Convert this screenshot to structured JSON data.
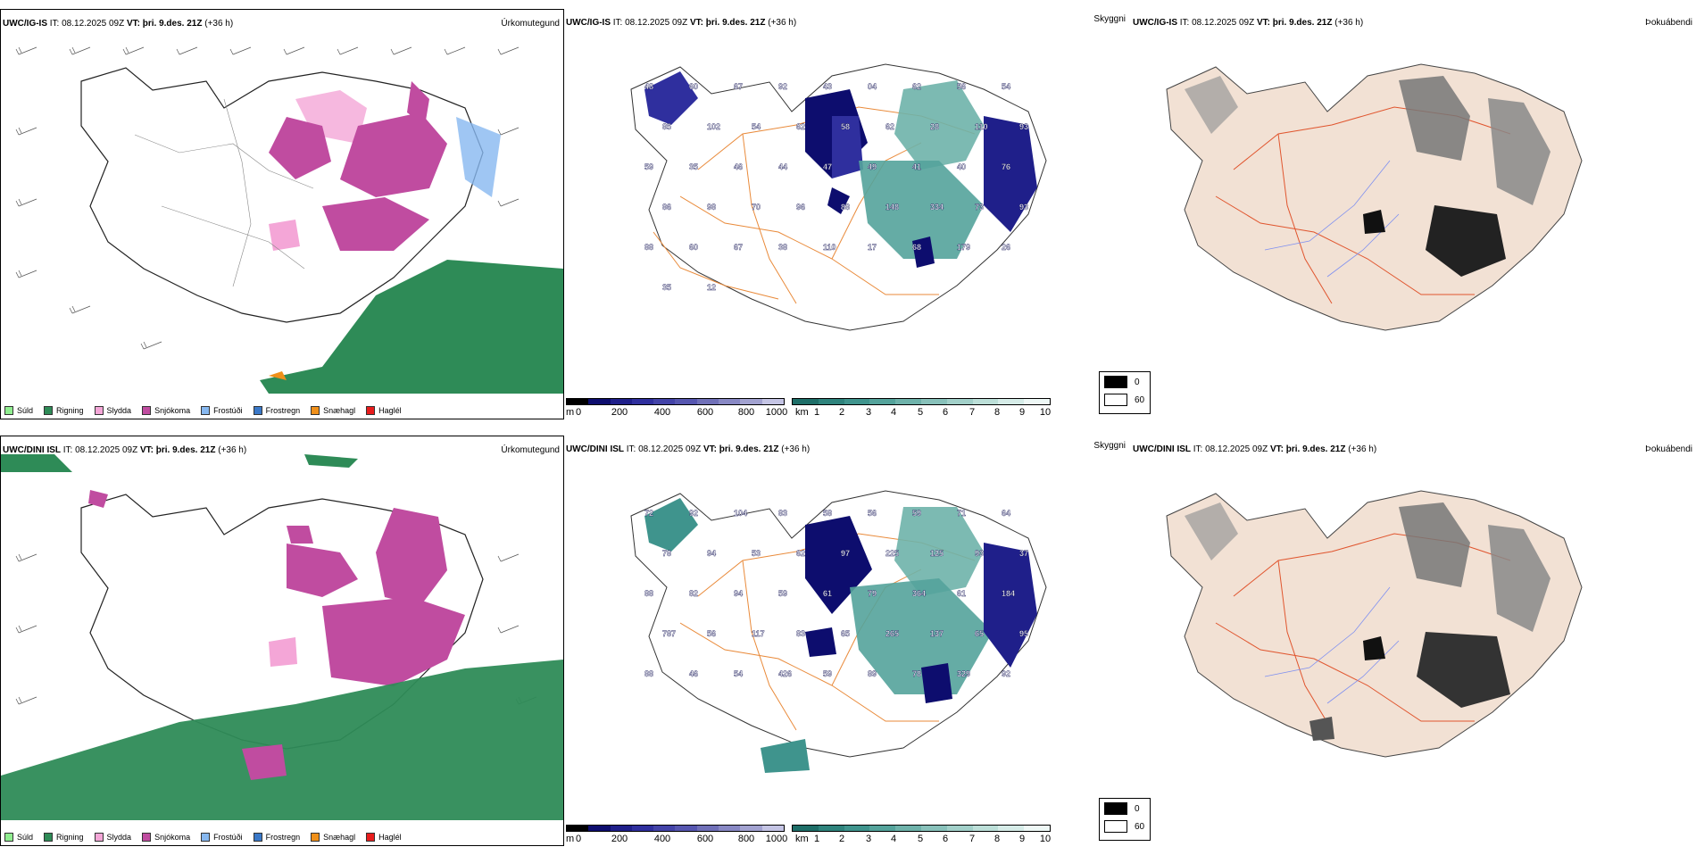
{
  "precip_legend": [
    {
      "label": "Súld",
      "color": "#90ee90"
    },
    {
      "label": "Rigning",
      "color": "#2e8b57"
    },
    {
      "label": "Slydda",
      "color": "#f4a6d7"
    },
    {
      "label": "Snjókoma",
      "color": "#c04ca0"
    },
    {
      "label": "Frostúði",
      "color": "#87b8f0"
    },
    {
      "label": "Frostregn",
      "color": "#3a78c8"
    },
    {
      "label": "Snæhagl",
      "color": "#f0901a"
    },
    {
      "label": "Haglél",
      "color": "#e81c1c"
    }
  ],
  "rows": [
    {
      "model": "UWC/IG-IS",
      "it_label": "IT:",
      "it_value": "08.12.2025 09Z",
      "vt_label": "VT:",
      "vt_value": "þri. 9.des. 21Z",
      "lead": "(+36 h)",
      "title_precip": "Úrkomutegund",
      "title_vis": "Skyggni",
      "title_fog": "Þokuábendi",
      "cloud_labels": [
        "48",
        "60",
        "67",
        "92",
        "43",
        "04",
        "62",
        "56",
        "54",
        "85",
        "102",
        "54",
        "62",
        "58",
        "62",
        "28",
        "110",
        "93",
        "59",
        "35",
        "46",
        "44",
        "47",
        "49",
        "41",
        "40",
        "76",
        "86",
        "98",
        "70",
        "96",
        "88",
        "148",
        "334",
        "73",
        "93",
        "88",
        "60",
        "67",
        "38",
        "110",
        "17",
        "68",
        "179",
        "26",
        "35",
        "12"
      ]
    },
    {
      "model": "UWC/DINI ISL",
      "it_label": "IT:",
      "it_value": "08.12.2025 09Z",
      "vt_label": "VT:",
      "vt_value": "þri. 9.des. 21Z",
      "lead": "(+36 h)",
      "title_precip": "Úrkomutegund",
      "title_vis": "Skyggni",
      "title_fog": "Þokuábendi",
      "cloud_labels": [
        "72",
        "92",
        "104",
        "83",
        "58",
        "56",
        "59",
        "71",
        "64",
        "78",
        "94",
        "53",
        "62",
        "97",
        "225",
        "125",
        "93",
        "37",
        "88",
        "82",
        "94",
        "59",
        "61",
        "79",
        "364",
        "61",
        "184",
        "787",
        "56",
        "117",
        "83",
        "65",
        "265",
        "137",
        "65",
        "95",
        "88",
        "46",
        "54",
        "426",
        "59",
        "89",
        "78",
        "329",
        "92"
      ]
    }
  ],
  "colorbar_height": {
    "unit": "m",
    "ticks": [
      "0",
      "200",
      "400",
      "600",
      "800",
      "1000"
    ],
    "colors": [
      "#000000",
      "#0d0d6e",
      "#1f1f8a",
      "#2f2f9e",
      "#4343a8",
      "#5656b0",
      "#7070b8",
      "#8888c4",
      "#a2a2d0",
      "#c4c4e4"
    ]
  },
  "colorbar_vis": {
    "unit": "km",
    "ticks": [
      "1",
      "2",
      "3",
      "4",
      "5",
      "6",
      "7",
      "8",
      "9",
      "10"
    ],
    "colors": [
      "#1e6e68",
      "#2e837c",
      "#3f948d",
      "#54a39b",
      "#6eb2aa",
      "#88c1ba",
      "#a2d0c9",
      "#bcdfd8",
      "#d6ece8",
      "#eef8f6"
    ]
  },
  "fog_legend": [
    {
      "label": "0",
      "color": "#000000"
    },
    {
      "label": "60",
      "color": "#ffffff"
    }
  ]
}
